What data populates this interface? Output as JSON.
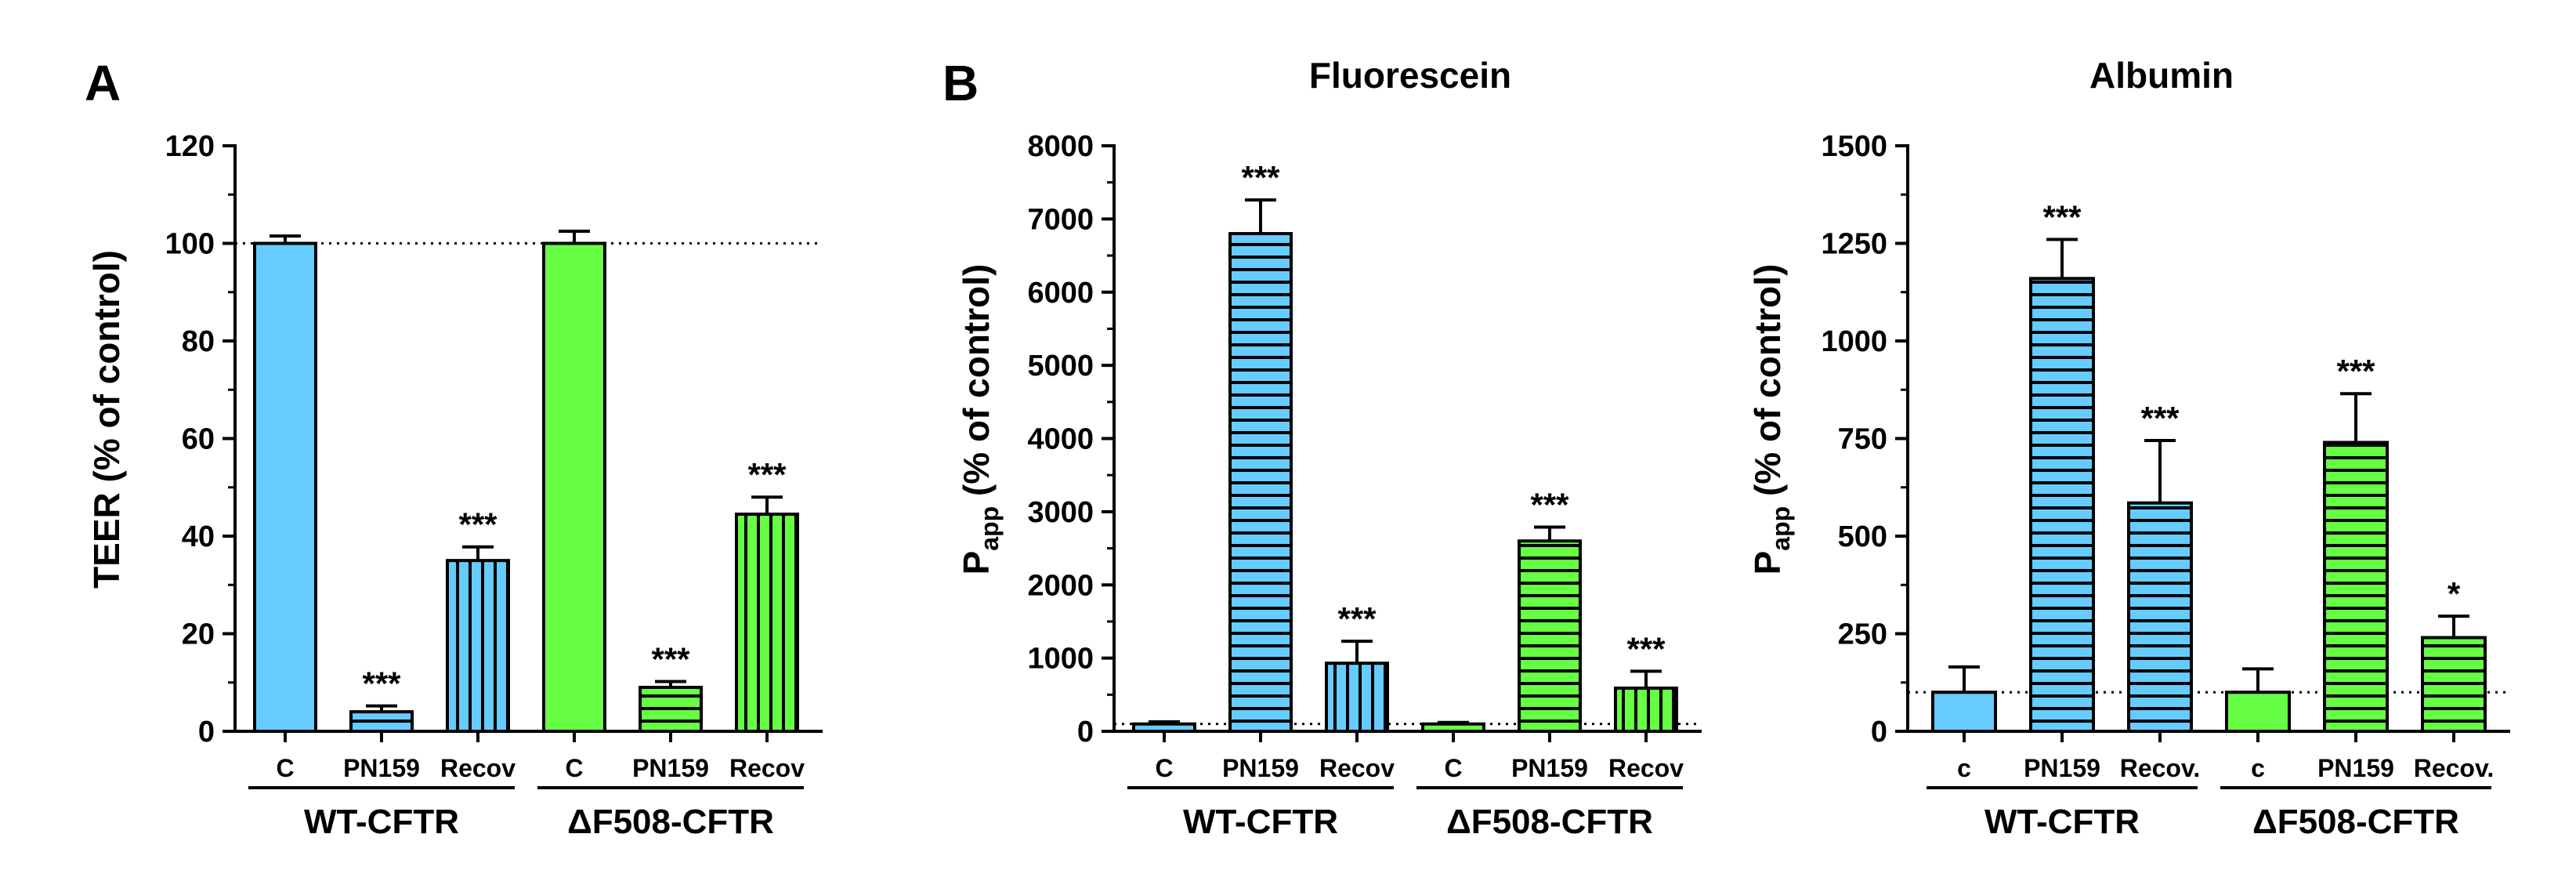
{
  "colors": {
    "wt": "#66ccff",
    "df": "#66ff44",
    "stroke": "#000000"
  },
  "chart_data": [
    {
      "type": "bar",
      "panel_label": "A",
      "title": "",
      "ylabel": "TEER (% of control)",
      "ylim": [
        0,
        120
      ],
      "ytick_labels": [
        "0",
        "20",
        "40",
        "60",
        "80",
        "100",
        "120"
      ],
      "categories": [
        "C",
        "PN159",
        "Recov",
        "C",
        "PN159",
        "Recov"
      ],
      "groups": [
        {
          "label": "WT-CFTR",
          "size": 3
        },
        {
          "label": "ΔF508-CFTR",
          "size": 3
        }
      ],
      "values": [
        100,
        4,
        35,
        100,
        9,
        44.5
      ],
      "errors": [
        1.5,
        1.2,
        2.8,
        2.5,
        1.2,
        3.5
      ],
      "significance": [
        "",
        "***",
        "***",
        "",
        "***",
        "***"
      ],
      "patterns": [
        "solid",
        "horizontal",
        "vertical",
        "solid",
        "horizontal",
        "vertical"
      ],
      "reference_line": 100
    },
    {
      "type": "bar",
      "panel_label": "B",
      "title": "Fluorescein",
      "ylabel_main": "P",
      "ylabel_sub": "app",
      "ylabel_rest": " (% of control)",
      "ylim": [
        0,
        8000
      ],
      "ytick_labels": [
        "0",
        "1000",
        "2000",
        "3000",
        "4000",
        "5000",
        "6000",
        "7000",
        "8000"
      ],
      "categories": [
        "C",
        "PN159",
        "Recov",
        "C",
        "PN159",
        "Recov"
      ],
      "groups": [
        {
          "label": "WT-CFTR",
          "size": 3
        },
        {
          "label": "ΔF508-CFTR",
          "size": 3
        }
      ],
      "values": [
        100,
        6800,
        930,
        100,
        2600,
        590
      ],
      "errors": [
        30,
        460,
        300,
        20,
        190,
        230
      ],
      "significance": [
        "",
        "***",
        "***",
        "",
        "***",
        "***"
      ],
      "patterns": [
        "solid",
        "horizontal",
        "vertical",
        "solid",
        "horizontal",
        "vertical"
      ],
      "reference_line": 100
    },
    {
      "type": "bar",
      "panel_label": "",
      "title": "Albumin",
      "ylabel_main": "P",
      "ylabel_sub": "app",
      "ylabel_rest": " (% of control)",
      "ylim": [
        0,
        1500
      ],
      "ytick_labels": [
        "0",
        "250",
        "500",
        "750",
        "1000",
        "1250",
        "1500"
      ],
      "categories": [
        "c",
        "PN159",
        "Recov.",
        "c",
        "PN159",
        "Recov."
      ],
      "groups": [
        {
          "label": "WT-CFTR",
          "size": 3
        },
        {
          "label": "ΔF508-CFTR",
          "size": 3
        }
      ],
      "values": [
        100,
        1160,
        585,
        100,
        740,
        240
      ],
      "errors": [
        65,
        100,
        160,
        60,
        125,
        55
      ],
      "significance": [
        "",
        "***",
        "***",
        "",
        "***",
        "*"
      ],
      "patterns": [
        "solid",
        "horizontal",
        "horizontal",
        "solid",
        "horizontal",
        "horizontal"
      ],
      "reference_line": 100
    }
  ]
}
